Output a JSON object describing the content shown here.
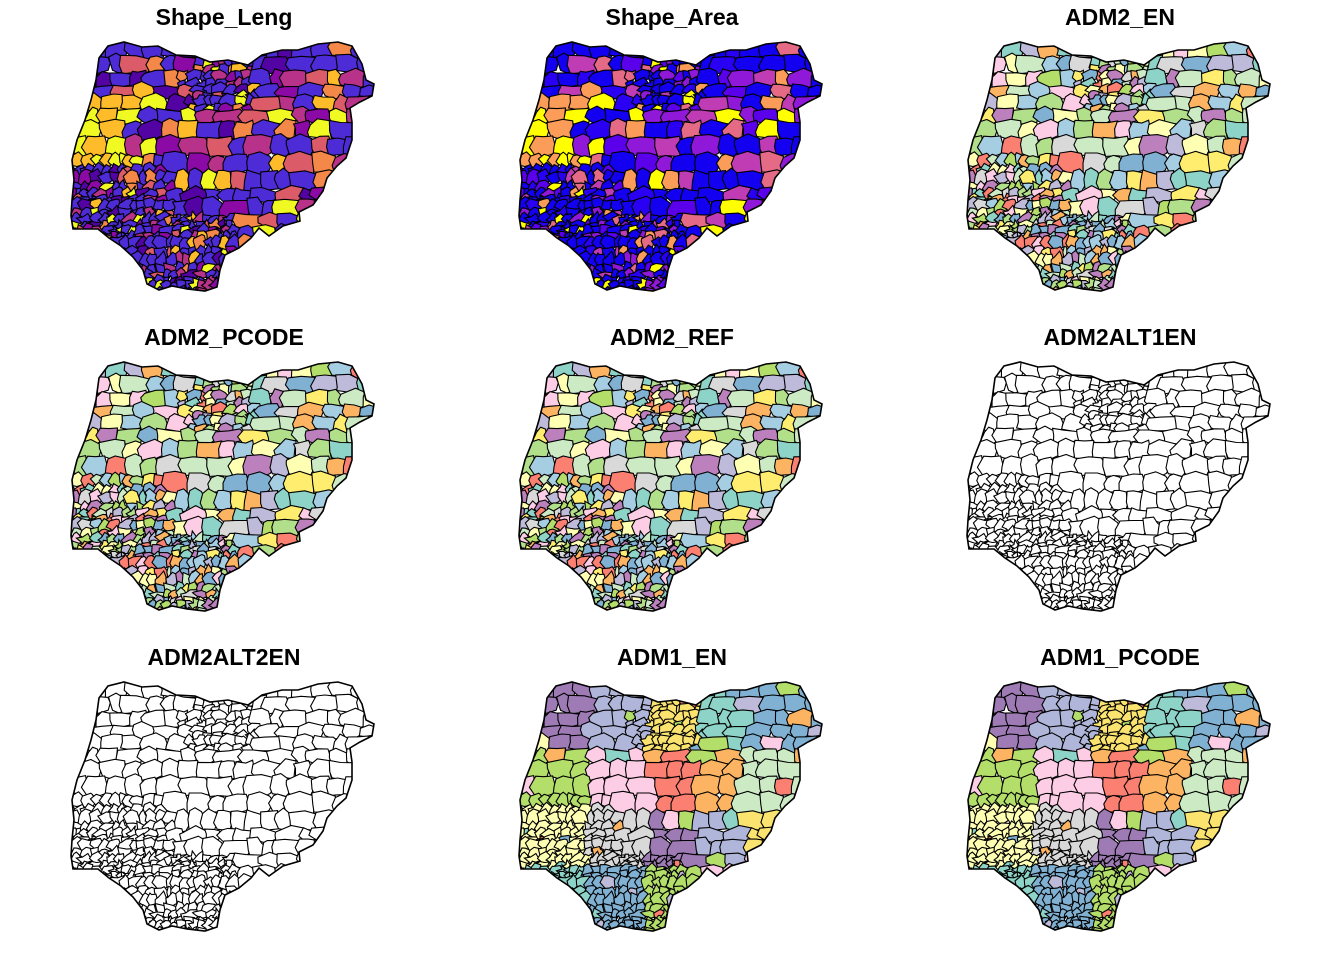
{
  "panels": [
    {
      "title": "Shape_Leng",
      "palette": "continuous",
      "ramp": [
        "#0D0887",
        "#5302A3",
        "#8B0AA5",
        "#B83289",
        "#DB5C68",
        "#F48849",
        "#FEBC2A",
        "#F0F921"
      ],
      "base": "#4D2BD6"
    },
    {
      "title": "Shape_Area",
      "palette": "continuous",
      "ramp": [
        "#0000FF",
        "#2A00F5",
        "#5A00EA",
        "#8F18D9",
        "#C03CB4",
        "#E56A86",
        "#FB9C58",
        "#FFFF00"
      ],
      "base": "#1400F0"
    },
    {
      "title": "ADM2_EN",
      "palette": "categorical"
    },
    {
      "title": "ADM2_PCODE",
      "palette": "categorical"
    },
    {
      "title": "ADM2_REF",
      "palette": "categorical"
    },
    {
      "title": "ADM2ALT1EN",
      "palette": "none"
    },
    {
      "title": "ADM2ALT2EN",
      "palette": "none"
    },
    {
      "title": "ADM1_EN",
      "palette": "states"
    },
    {
      "title": "ADM1_PCODE",
      "palette": "states"
    }
  ],
  "categorical_colors": [
    "#8DD3C7",
    "#FFFFB3",
    "#BEBADA",
    "#FB8072",
    "#80B1D3",
    "#FDB462",
    "#B3DE69",
    "#FCCDE5",
    "#D9D9D9",
    "#BC80BD",
    "#CCEBC5",
    "#FFED6F",
    "#A6CEE3",
    "#B2DF8A"
  ],
  "state_colors": [
    "#9E7BB5",
    "#B0B6D9",
    "#FBE36F",
    "#8DD3C7",
    "#80B1D3",
    "#B3DE69",
    "#FCCDE5",
    "#FB8072",
    "#FDB462",
    "#CCEBC5",
    "#FFFFB3",
    "#D9D9D9"
  ],
  "outline_color": "#000000"
}
